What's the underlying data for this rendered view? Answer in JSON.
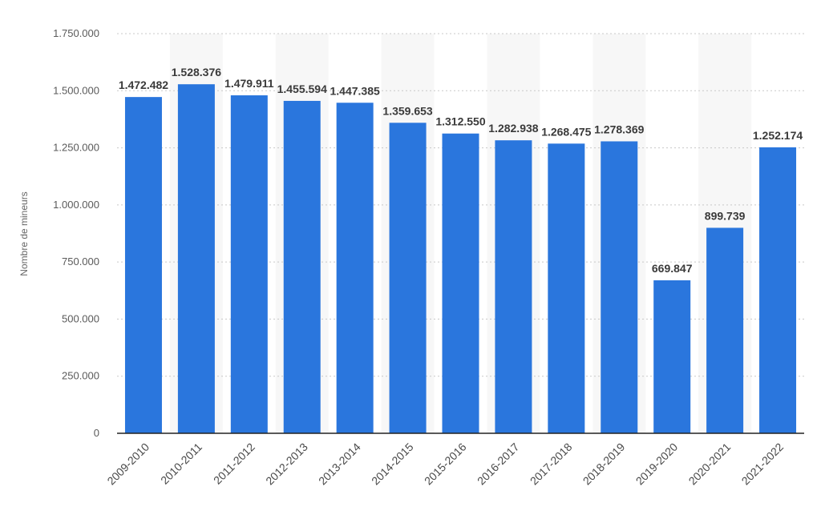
{
  "chart_data": {
    "type": "bar",
    "title": "",
    "xlabel": "",
    "ylabel": "Nombre de mineurs",
    "ylim": [
      0,
      1750000
    ],
    "yticks": [
      0,
      250000,
      500000,
      750000,
      1000000,
      1250000,
      1500000,
      1750000
    ],
    "ytick_labels": [
      "0",
      "250.000",
      "500.000",
      "750.000",
      "1.000.000",
      "1.250.000",
      "1.500.000",
      "1.750.000"
    ],
    "categories": [
      "2009-2010",
      "2010-2011",
      "2011-2012",
      "2012-2013",
      "2013-2014",
      "2014-2015",
      "2015-2016",
      "2016-2017",
      "2017-2018",
      "2018-2019",
      "2019-2020",
      "2020-2021",
      "2021-2022"
    ],
    "values": [
      1472482,
      1528376,
      1479911,
      1455594,
      1447385,
      1359653,
      1312550,
      1282938,
      1268475,
      1278369,
      669847,
      899739,
      1252174
    ],
    "value_labels": [
      "1.472.482",
      "1.528.376",
      "1.479.911",
      "1.455.594",
      "1.447.385",
      "1.359.653",
      "1.312.550",
      "1.282.938",
      "1.268.475",
      "1.278.369",
      "669.847",
      "899.739",
      "1.252.174"
    ],
    "grid": true,
    "legend": "none",
    "colors": {
      "bar": "#2a76dd",
      "band": "#f7f7f7"
    }
  }
}
